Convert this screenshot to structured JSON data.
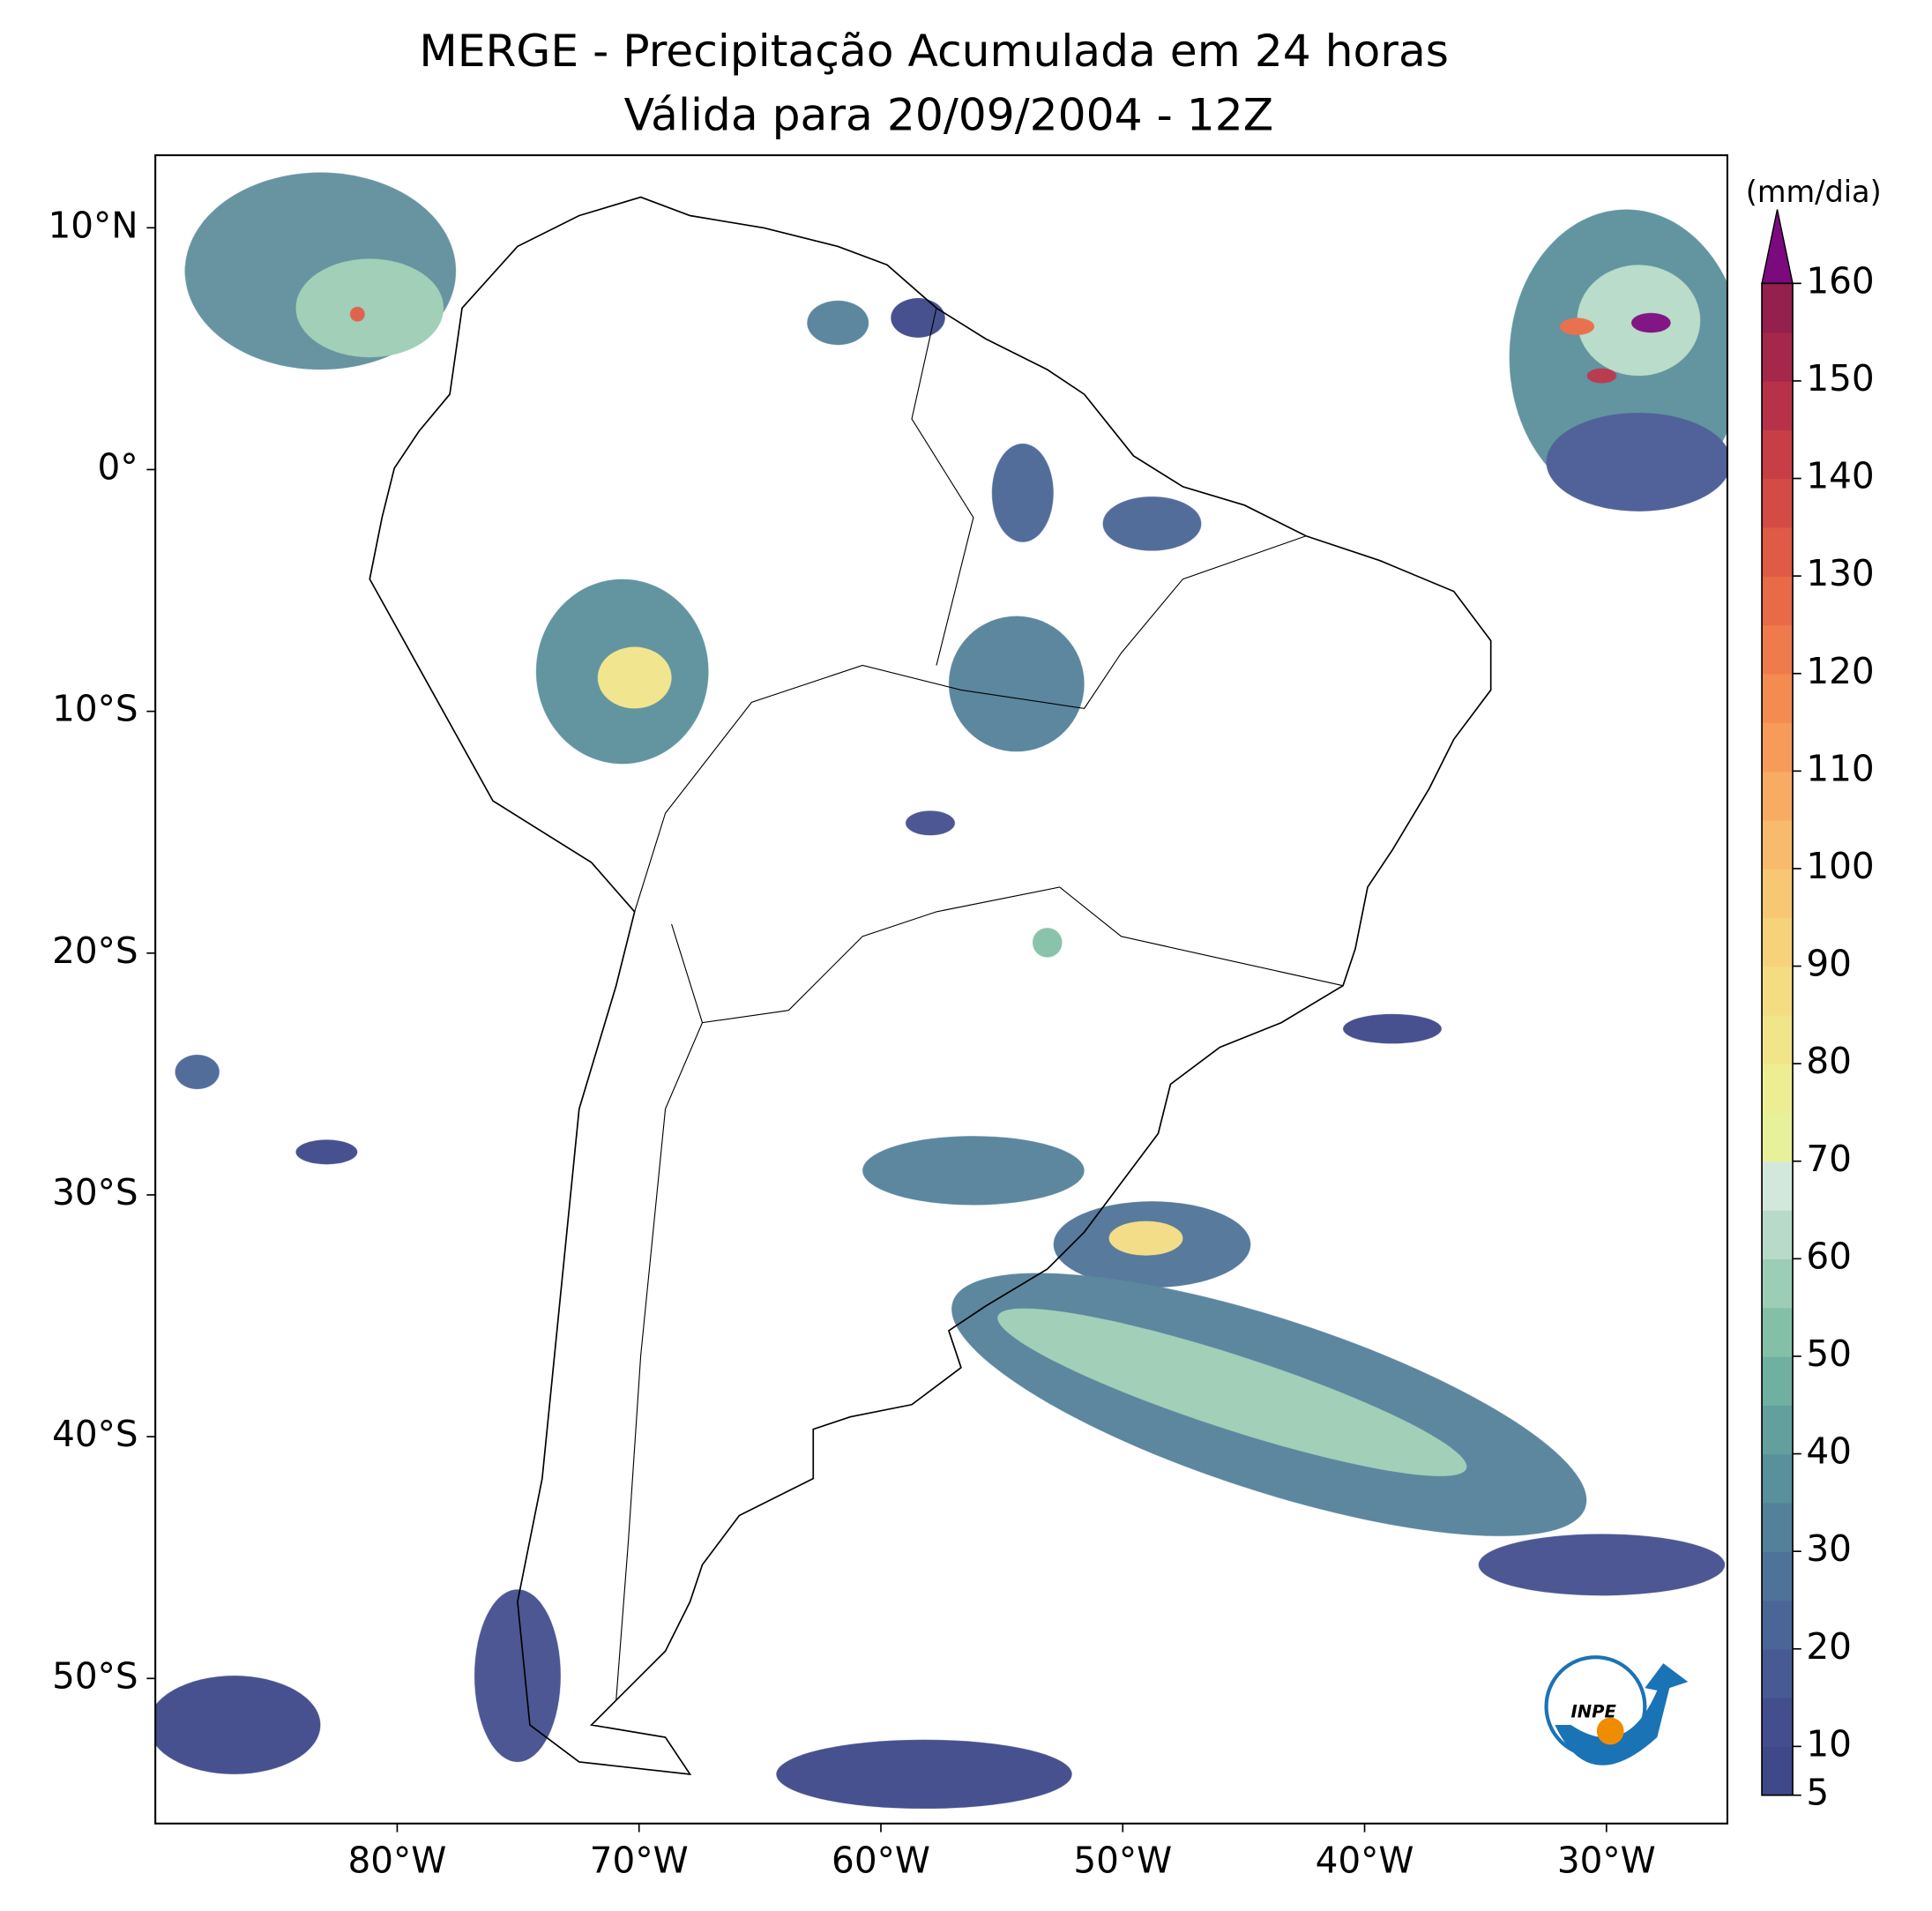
{
  "map": {
    "title": "MERGE - Precipitação Acumulada em 24 horas",
    "subtitle": "Válida para 20/09/2004 - 12Z",
    "xlim": [
      -90,
      -25
    ],
    "ylim": [
      -56,
      13
    ],
    "xticks": [
      {
        "value": -80,
        "label": "80°W"
      },
      {
        "value": -70,
        "label": "70°W"
      },
      {
        "value": -60,
        "label": "60°W"
      },
      {
        "value": -50,
        "label": "50°W"
      },
      {
        "value": -40,
        "label": "40°W"
      },
      {
        "value": -30,
        "label": "30°W"
      }
    ],
    "yticks": [
      {
        "value": 10,
        "label": "10°N"
      },
      {
        "value": 0,
        "label": "0°"
      },
      {
        "value": -10,
        "label": "10°S"
      },
      {
        "value": -20,
        "label": "20°S"
      },
      {
        "value": -30,
        "label": "30°S"
      },
      {
        "value": -40,
        "label": "40°S"
      },
      {
        "value": -50,
        "label": "50°S"
      }
    ]
  },
  "colorbar": {
    "label": "(mm/dia)",
    "lim": [
      5,
      160
    ],
    "ticks": [
      5,
      10,
      20,
      30,
      40,
      50,
      60,
      70,
      80,
      90,
      100,
      110,
      120,
      130,
      140,
      150,
      160
    ],
    "step": 5,
    "extend_color": "#7b0a7e",
    "colors": [
      "#3f4889",
      "#434e8f",
      "#475a94",
      "#4a6696",
      "#4f7398",
      "#54819a",
      "#5a909b",
      "#63a09d",
      "#70b0a0",
      "#84c0a8",
      "#9ccdb5",
      "#b7dbc8",
      "#d2e8dc",
      "#e6f19a",
      "#edee93",
      "#f1e58a",
      "#f4dc82",
      "#f6d27b",
      "#f8c774",
      "#f8ba6c",
      "#f7ab63",
      "#f69b5a",
      "#f48b51",
      "#ef7a4b",
      "#e86a47",
      "#df5b45",
      "#d44b45",
      "#c73e46",
      "#b73248",
      "#a5274a",
      "#93204d"
    ]
  },
  "logo": "INPE"
}
